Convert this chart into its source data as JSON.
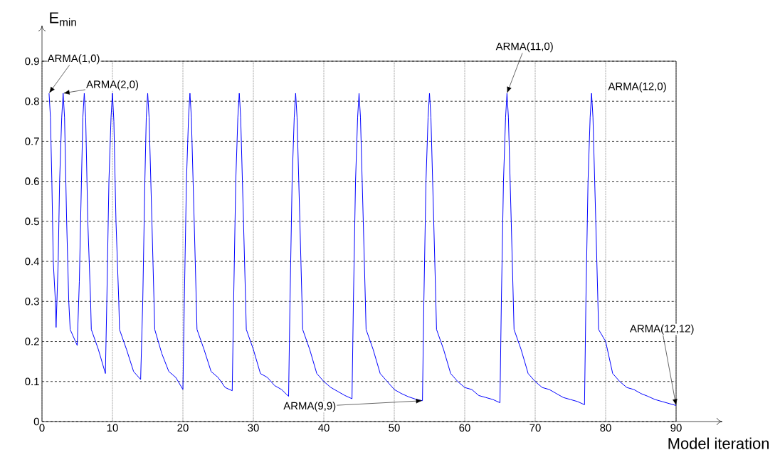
{
  "chart_data": {
    "type": "line",
    "xlabel": "Model iteration",
    "ylabel": "E$_{min}$",
    "xlim": [
      0,
      90
    ],
    "ylim": [
      0,
      0.9
    ],
    "xticks": [
      0,
      10,
      20,
      30,
      40,
      50,
      60,
      70,
      80,
      90
    ],
    "yticks": [
      0,
      0.1,
      0.2,
      0.3,
      0.4,
      0.5,
      0.6,
      0.7,
      0.8,
      0.9
    ],
    "grid": true,
    "marker": "none",
    "line_style": "solid",
    "series": [
      {
        "color": "#0000ff",
        "x": [
          1,
          1.2,
          1.4,
          1.6,
          1.9,
          2,
          2.3,
          2.5,
          2.8,
          3,
          3.2,
          3.5,
          3.8,
          4,
          5,
          5.3,
          5.6,
          5.8,
          6,
          6.2,
          6.5,
          6.9,
          7,
          8,
          9,
          9.2,
          9.5,
          9.8,
          10,
          10.2,
          10.5,
          10.9,
          11,
          12,
          13,
          14,
          14.3,
          14.6,
          14.8,
          15,
          15.2,
          15.6,
          15.9,
          16,
          17,
          18,
          19,
          20,
          20.2,
          20.5,
          20.8,
          21,
          21.2,
          21.6,
          21.9,
          22,
          23,
          24,
          25,
          26,
          27,
          27.2,
          27.5,
          27.8,
          28,
          28.2,
          28.6,
          28.9,
          29,
          30,
          31,
          32,
          33,
          34,
          35,
          35.2,
          35.5,
          35.8,
          36,
          36.2,
          36.6,
          36.9,
          37,
          38,
          39,
          40,
          41,
          42,
          43,
          44,
          44.2,
          44.5,
          44.8,
          45,
          45.2,
          45.6,
          45.9,
          46,
          47,
          48,
          49,
          50,
          51,
          52,
          53,
          54,
          54.2,
          54.5,
          54.8,
          55,
          55.2,
          55.6,
          55.9,
          56,
          57,
          58,
          59,
          60,
          61,
          62,
          63,
          64,
          65,
          65.2,
          65.5,
          65.8,
          66,
          66.2,
          66.6,
          66.9,
          67,
          68,
          69,
          70,
          71,
          72,
          73,
          74,
          75,
          76,
          77,
          77.2,
          77.5,
          77.8,
          78,
          78.2,
          78.6,
          78.9,
          79,
          80,
          81,
          82,
          83,
          84,
          85,
          86,
          87,
          88,
          89,
          90
        ],
        "values": [
          0.82,
          0.76,
          0.6,
          0.4,
          0.3,
          0.235,
          0.4,
          0.6,
          0.76,
          0.82,
          0.76,
          0.5,
          0.3,
          0.23,
          0.19,
          0.35,
          0.6,
          0.76,
          0.82,
          0.76,
          0.5,
          0.3,
          0.23,
          0.18,
          0.12,
          0.3,
          0.6,
          0.76,
          0.82,
          0.75,
          0.5,
          0.3,
          0.23,
          0.18,
          0.125,
          0.105,
          0.3,
          0.6,
          0.76,
          0.82,
          0.76,
          0.5,
          0.3,
          0.23,
          0.17,
          0.125,
          0.11,
          0.08,
          0.3,
          0.6,
          0.76,
          0.82,
          0.76,
          0.5,
          0.3,
          0.23,
          0.18,
          0.125,
          0.11,
          0.085,
          0.077,
          0.3,
          0.6,
          0.76,
          0.82,
          0.76,
          0.5,
          0.3,
          0.23,
          0.18,
          0.12,
          0.11,
          0.09,
          0.08,
          0.063,
          0.3,
          0.6,
          0.76,
          0.82,
          0.76,
          0.5,
          0.3,
          0.23,
          0.18,
          0.12,
          0.1,
          0.085,
          0.075,
          0.065,
          0.057,
          0.3,
          0.6,
          0.76,
          0.82,
          0.76,
          0.5,
          0.3,
          0.23,
          0.18,
          0.12,
          0.1,
          0.08,
          0.07,
          0.062,
          0.056,
          0.052,
          0.3,
          0.6,
          0.76,
          0.82,
          0.76,
          0.5,
          0.3,
          0.23,
          0.18,
          0.12,
          0.1,
          0.085,
          0.08,
          0.065,
          0.06,
          0.055,
          0.047,
          0.3,
          0.6,
          0.76,
          0.82,
          0.76,
          0.5,
          0.3,
          0.23,
          0.18,
          0.12,
          0.1,
          0.085,
          0.08,
          0.07,
          0.06,
          0.055,
          0.05,
          0.042,
          0.3,
          0.6,
          0.76,
          0.82,
          0.76,
          0.5,
          0.3,
          0.23,
          0.2,
          0.12,
          0.1,
          0.085,
          0.08,
          0.07,
          0.063,
          0.055,
          0.05,
          0.045,
          0.04
        ]
      }
    ],
    "annotations": [
      {
        "text": "ARMA(1,0)",
        "x": 1,
        "y": 0.82
      },
      {
        "text": "ARMA(2,0)",
        "x": 3,
        "y": 0.82
      },
      {
        "text": "ARMA(9,9)",
        "x": 54,
        "y": 0.052
      },
      {
        "text": "ARMA(11,0)",
        "x": 66,
        "y": 0.82
      },
      {
        "text": "ARMA(12,0)",
        "x": 78,
        "y": 0.82
      },
      {
        "text": "ARMA(12,12)",
        "x": 90,
        "y": 0.04
      }
    ]
  }
}
